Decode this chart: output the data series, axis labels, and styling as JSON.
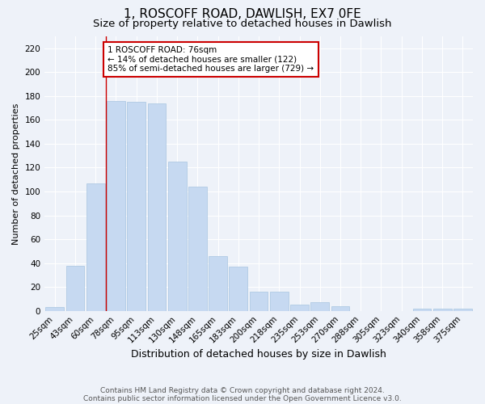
{
  "title": "1, ROSCOFF ROAD, DAWLISH, EX7 0FE",
  "subtitle": "Size of property relative to detached houses in Dawlish",
  "xlabel": "Distribution of detached houses by size in Dawlish",
  "ylabel": "Number of detached properties",
  "categories": [
    "25sqm",
    "43sqm",
    "60sqm",
    "78sqm",
    "95sqm",
    "113sqm",
    "130sqm",
    "148sqm",
    "165sqm",
    "183sqm",
    "200sqm",
    "218sqm",
    "235sqm",
    "253sqm",
    "270sqm",
    "288sqm",
    "305sqm",
    "323sqm",
    "340sqm",
    "358sqm",
    "375sqm"
  ],
  "values": [
    3,
    38,
    107,
    176,
    175,
    174,
    125,
    104,
    46,
    37,
    16,
    16,
    5,
    7,
    4,
    0,
    0,
    0,
    2,
    2,
    2
  ],
  "bar_color": "#c6d9f1",
  "bar_edge_color": "#a8c4e0",
  "vline_x_index": 3,
  "vline_color": "#cc0000",
  "annotation_text": "1 ROSCOFF ROAD: 76sqm\n← 14% of detached houses are smaller (122)\n85% of semi-detached houses are larger (729) →",
  "annotation_box_color": "#ffffff",
  "annotation_box_edge_color": "#cc0000",
  "ylim": [
    0,
    230
  ],
  "yticks": [
    0,
    20,
    40,
    60,
    80,
    100,
    120,
    140,
    160,
    180,
    200,
    220
  ],
  "footnote1": "Contains HM Land Registry data © Crown copyright and database right 2024.",
  "footnote2": "Contains public sector information licensed under the Open Government Licence v3.0.",
  "title_fontsize": 11,
  "subtitle_fontsize": 9.5,
  "xlabel_fontsize": 9,
  "ylabel_fontsize": 8,
  "tick_fontsize": 7.5,
  "annotation_fontsize": 7.5,
  "footnote_fontsize": 6.5,
  "background_color": "#eef2f9",
  "grid_color": "#ffffff"
}
